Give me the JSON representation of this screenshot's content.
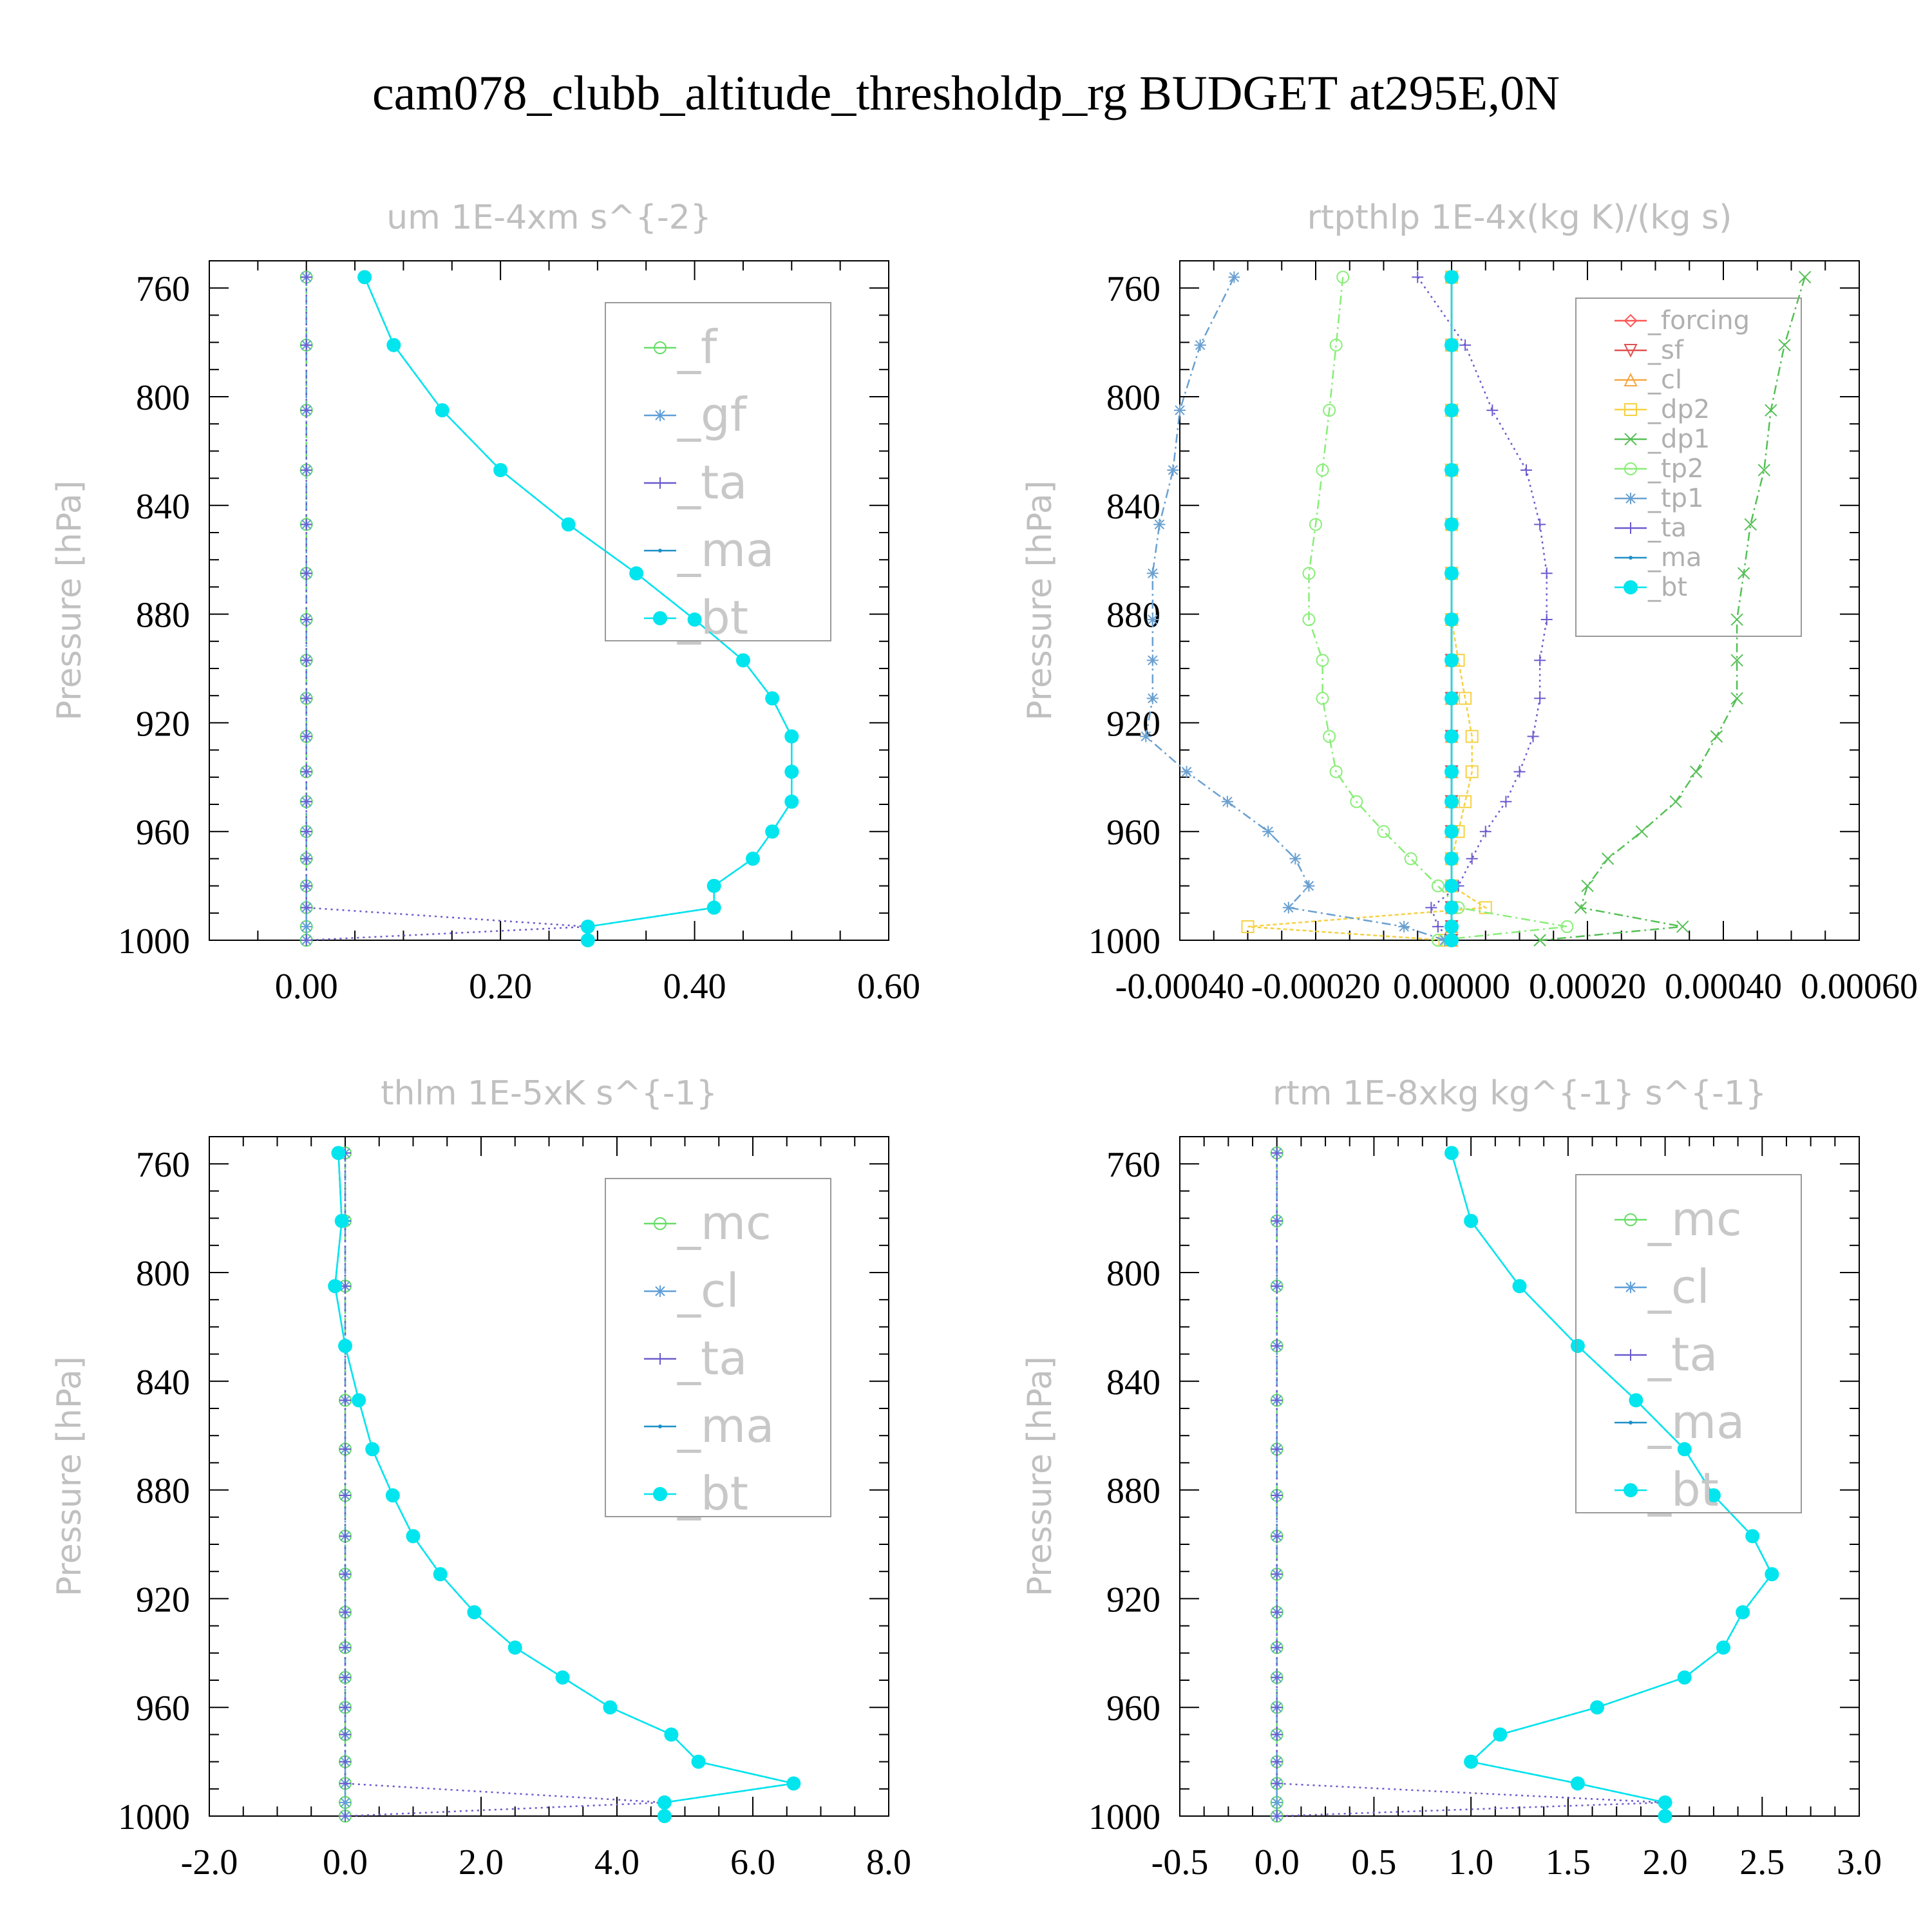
{
  "title": "cam078_clubb_altitude_thresholdp_rg  BUDGET at295E,0N",
  "colors": {
    "f": "#66dd66",
    "gf": "#5f9fd8",
    "ta": "#6a5acd",
    "ma": "#1e90c8",
    "bt": "#00e5ee",
    "forcing": "#ff5555",
    "sf": "#e05050",
    "cl": "#f5a742",
    "dp2": "#f5d142",
    "dp1": "#55c055",
    "tp2": "#88ee77",
    "tp1": "#6aa0d0",
    "mc": "#66dd66"
  },
  "chart_data": [
    {
      "type": "line",
      "title": "um  1E-4xm s^{-2}",
      "ylabel": "Pressure [hPa]",
      "xticks": [
        "0.00",
        "0.20",
        "0.40",
        "0.60"
      ],
      "xtick_values": [
        0,
        0.2,
        0.4,
        0.6
      ],
      "yticks": [
        "760",
        "800",
        "840",
        "880",
        "920",
        "960",
        "1000"
      ],
      "xlim": [
        -0.1,
        0.6
      ],
      "ylim": [
        750,
        1000
      ],
      "legend_style": "big",
      "pressure": [
        756,
        781,
        805,
        827,
        847,
        865,
        882,
        897,
        911,
        925,
        938,
        949,
        960,
        970,
        980,
        988,
        995,
        1000
      ],
      "series": [
        {
          "name": "_f",
          "key": "f",
          "marker": "circle",
          "dash": "10,6",
          "values": [
            0,
            0,
            0,
            0,
            0,
            0,
            0,
            0,
            0,
            0,
            0,
            0,
            0,
            0,
            0,
            0,
            0,
            0
          ]
        },
        {
          "name": "_gf",
          "key": "gf",
          "marker": "star",
          "dash": "14,6,3,6",
          "values": [
            0,
            0,
            0,
            0,
            0,
            0,
            0,
            0,
            0,
            0,
            0,
            0,
            0,
            0,
            0,
            0,
            0,
            0
          ]
        },
        {
          "name": "_ta",
          "key": "ta",
          "marker": "plus",
          "dash": "3,6",
          "values": [
            0,
            0,
            0,
            0,
            0,
            0,
            0,
            0,
            0,
            0,
            0,
            0,
            0,
            0,
            0,
            0,
            0.29,
            0
          ]
        },
        {
          "name": "_ma",
          "key": "ma",
          "marker": "dot",
          "dash": "8,4",
          "values": [
            0.06,
            0.09,
            0.14,
            0.2,
            0.27,
            0.34,
            0.4,
            0.45,
            0.48,
            0.5,
            0.5,
            0.5,
            0.48,
            0.46,
            0.42,
            0.42,
            0.29,
            0.29
          ]
        },
        {
          "name": "_bt",
          "key": "bt",
          "marker": "bigdot",
          "dash": "",
          "values": [
            0.06,
            0.09,
            0.14,
            0.2,
            0.27,
            0.34,
            0.4,
            0.45,
            0.48,
            0.5,
            0.5,
            0.5,
            0.48,
            0.46,
            0.42,
            0.42,
            0.29,
            0.29
          ]
        }
      ]
    },
    {
      "type": "line",
      "title": "rtpthlp  1E-4x(kg K)/(kg s)",
      "ylabel": "Pressure [hPa]",
      "xticks": [
        "-0.00040",
        "-0.00020",
        "0.00000",
        "0.00020",
        "0.00040",
        "0.00060"
      ],
      "xtick_values": [
        -0.0004,
        -0.0002,
        0,
        0.0002,
        0.0004,
        0.0006
      ],
      "yticks": [
        "760",
        "800",
        "840",
        "880",
        "920",
        "960",
        "1000"
      ],
      "xlim": [
        -0.0004,
        0.0006
      ],
      "ylim": [
        750,
        1000
      ],
      "legend_style": "small",
      "pressure": [
        756,
        781,
        805,
        827,
        847,
        865,
        882,
        897,
        911,
        925,
        938,
        949,
        960,
        970,
        980,
        988,
        995,
        1000
      ],
      "series": [
        {
          "name": "_forcing",
          "key": "forcing",
          "marker": "diamond",
          "dash": "",
          "values": [
            0,
            0,
            0,
            0,
            0,
            0,
            0,
            0,
            0,
            0,
            0,
            0,
            0,
            0,
            0,
            0,
            0,
            0
          ]
        },
        {
          "name": "_sf",
          "key": "sf",
          "marker": "tridown",
          "dash": "",
          "values": [
            0,
            0,
            0,
            0,
            0,
            0,
            0,
            0,
            0,
            0,
            0,
            0,
            0,
            0,
            0,
            0,
            0,
            0
          ]
        },
        {
          "name": "_cl",
          "key": "cl",
          "marker": "triup",
          "dash": "",
          "values": [
            0,
            0,
            0,
            0,
            0,
            0,
            0,
            0,
            0,
            0,
            0,
            0,
            0,
            0,
            0,
            0,
            0,
            0
          ]
        },
        {
          "name": "_dp2",
          "key": "dp2",
          "marker": "square",
          "dash": "6,4",
          "values": [
            0,
            0,
            0,
            0,
            0,
            0,
            0,
            1e-05,
            2e-05,
            3e-05,
            3e-05,
            2e-05,
            1e-05,
            0,
            0,
            5e-05,
            -0.0003,
            -1e-05
          ]
        },
        {
          "name": "_dp1",
          "key": "dp1",
          "marker": "cross",
          "dash": "14,6,3,6",
          "values": [
            0.00052,
            0.00049,
            0.00047,
            0.00046,
            0.00044,
            0.00043,
            0.00042,
            0.00042,
            0.00042,
            0.00039,
            0.00036,
            0.00033,
            0.00028,
            0.00023,
            0.0002,
            0.00019,
            0.00034,
            0.00013
          ]
        },
        {
          "name": "_tp2",
          "key": "tp2",
          "marker": "circle",
          "dash": "14,6,3,6",
          "values": [
            -0.00016,
            -0.00017,
            -0.00018,
            -0.00019,
            -0.0002,
            -0.00021,
            -0.00021,
            -0.00019,
            -0.00019,
            -0.00018,
            -0.00017,
            -0.00014,
            -0.0001,
            -6e-05,
            -2e-05,
            1e-05,
            0.00017,
            -2e-05
          ]
        },
        {
          "name": "_tp1",
          "key": "tp1",
          "marker": "star",
          "dash": "14,6,3,6",
          "values": [
            -0.00032,
            -0.00037,
            -0.0004,
            -0.00041,
            -0.00043,
            -0.00044,
            -0.00044,
            -0.00044,
            -0.00044,
            -0.00045,
            -0.00039,
            -0.00033,
            -0.00027,
            -0.00023,
            -0.00021,
            -0.00024,
            -7e-05,
            -1e-05
          ]
        },
        {
          "name": "_ta",
          "key": "ta",
          "marker": "plus",
          "dash": "3,6",
          "values": [
            -5e-05,
            2e-05,
            6e-05,
            0.00011,
            0.00013,
            0.00014,
            0.00014,
            0.00013,
            0.00013,
            0.00012,
            0.0001,
            8e-05,
            5e-05,
            3e-05,
            1e-05,
            -3e-05,
            -2e-05,
            0
          ]
        },
        {
          "name": "_ma",
          "key": "ma",
          "marker": "dot",
          "dash": "",
          "values": [
            0,
            0,
            0,
            0,
            0,
            0,
            0,
            0,
            0,
            0,
            0,
            0,
            0,
            0,
            0,
            0,
            0,
            0
          ]
        },
        {
          "name": "_bt",
          "key": "bt",
          "marker": "bigdot",
          "dash": "",
          "values": [
            0,
            0,
            0,
            0,
            0,
            0,
            0,
            0,
            0,
            0,
            0,
            0,
            0,
            0,
            0,
            0,
            0,
            0
          ]
        }
      ]
    },
    {
      "type": "line",
      "title": "thlm  1E-5xK s^{-1}",
      "ylabel": "Pressure [hPa]",
      "xticks": [
        "-2.0",
        "0.0",
        "2.0",
        "4.0",
        "6.0",
        "8.0"
      ],
      "xtick_values": [
        -2,
        0,
        2,
        4,
        6,
        8
      ],
      "yticks": [
        "760",
        "800",
        "840",
        "880",
        "920",
        "960",
        "1000"
      ],
      "xlim": [
        -2,
        8
      ],
      "ylim": [
        750,
        1000
      ],
      "legend_style": "big",
      "pressure": [
        756,
        781,
        805,
        827,
        847,
        865,
        882,
        897,
        911,
        925,
        938,
        949,
        960,
        970,
        980,
        988,
        995,
        1000
      ],
      "series": [
        {
          "name": "_mc",
          "key": "mc",
          "marker": "circle",
          "dash": "10,6",
          "values": [
            0,
            0,
            0,
            0,
            0,
            0,
            0,
            0,
            0,
            0,
            0,
            0,
            0,
            0,
            0,
            0,
            0,
            0
          ]
        },
        {
          "name": "_cl",
          "key": "gf",
          "marker": "star",
          "dash": "14,6,3,6",
          "values": [
            0,
            0,
            0,
            0,
            0,
            0,
            0,
            0,
            0,
            0,
            0,
            0,
            0,
            0,
            0,
            0,
            0,
            0
          ]
        },
        {
          "name": "_ta",
          "key": "ta",
          "marker": "plus",
          "dash": "3,6",
          "values": [
            0,
            0,
            0,
            0,
            0,
            0,
            0,
            0,
            0,
            0,
            0,
            0,
            0,
            0,
            0,
            0,
            4.7,
            0
          ]
        },
        {
          "name": "_ma",
          "key": "ma",
          "marker": "dot",
          "dash": "8,4",
          "values": [
            -0.1,
            -0.05,
            -0.15,
            0,
            0.2,
            0.4,
            0.7,
            1.0,
            1.4,
            1.9,
            2.5,
            3.2,
            3.9,
            4.8,
            5.2,
            6.6,
            4.7,
            4.7
          ]
        },
        {
          "name": "_bt",
          "key": "bt",
          "marker": "bigdot",
          "dash": "",
          "values": [
            -0.1,
            -0.05,
            -0.15,
            0,
            0.2,
            0.4,
            0.7,
            1.0,
            1.4,
            1.9,
            2.5,
            3.2,
            3.9,
            4.8,
            5.2,
            6.6,
            4.7,
            4.7
          ]
        }
      ]
    },
    {
      "type": "line",
      "title": "rtm  1E-8xkg kg^{-1} s^{-1}",
      "ylabel": "Pressure [hPa]",
      "xticks": [
        "-0.5",
        "0.0",
        "0.5",
        "1.0",
        "1.5",
        "2.0",
        "2.5",
        "3.0"
      ],
      "xtick_values": [
        -0.5,
        0,
        0.5,
        1,
        1.5,
        2,
        2.5,
        3
      ],
      "yticks": [
        "760",
        "800",
        "840",
        "880",
        "920",
        "960",
        "1000"
      ],
      "xlim": [
        -0.5,
        3.0
      ],
      "ylim": [
        750,
        1000
      ],
      "legend_style": "big",
      "pressure": [
        756,
        781,
        805,
        827,
        847,
        865,
        882,
        897,
        911,
        925,
        938,
        949,
        960,
        970,
        980,
        988,
        995,
        1000
      ],
      "series": [
        {
          "name": "_mc",
          "key": "mc",
          "marker": "circle",
          "dash": "10,6",
          "values": [
            0,
            0,
            0,
            0,
            0,
            0,
            0,
            0,
            0,
            0,
            0,
            0,
            0,
            0,
            0,
            0,
            0,
            0
          ]
        },
        {
          "name": "_cl",
          "key": "gf",
          "marker": "star",
          "dash": "14,6,3,6",
          "values": [
            0,
            0,
            0,
            0,
            0,
            0,
            0,
            0,
            0,
            0,
            0,
            0,
            0,
            0,
            0,
            0,
            0,
            0
          ]
        },
        {
          "name": "_ta",
          "key": "ta",
          "marker": "plus",
          "dash": "3,6",
          "values": [
            0,
            0,
            0,
            0,
            0,
            0,
            0,
            0,
            0,
            0,
            0,
            0,
            0,
            0,
            0,
            0,
            2.0,
            0
          ]
        },
        {
          "name": "_ma",
          "key": "ma",
          "marker": "dot",
          "dash": "8,4",
          "values": [
            0.9,
            1.0,
            1.25,
            1.55,
            1.85,
            2.1,
            2.25,
            2.45,
            2.55,
            2.4,
            2.3,
            2.1,
            1.65,
            1.15,
            1.0,
            1.55,
            2.0,
            2.0
          ]
        },
        {
          "name": "_bt",
          "key": "bt",
          "marker": "bigdot",
          "dash": "",
          "values": [
            0.9,
            1.0,
            1.25,
            1.55,
            1.85,
            2.1,
            2.25,
            2.45,
            2.55,
            2.4,
            2.3,
            2.1,
            1.65,
            1.15,
            1.0,
            1.55,
            2.0,
            2.0
          ]
        }
      ]
    }
  ]
}
